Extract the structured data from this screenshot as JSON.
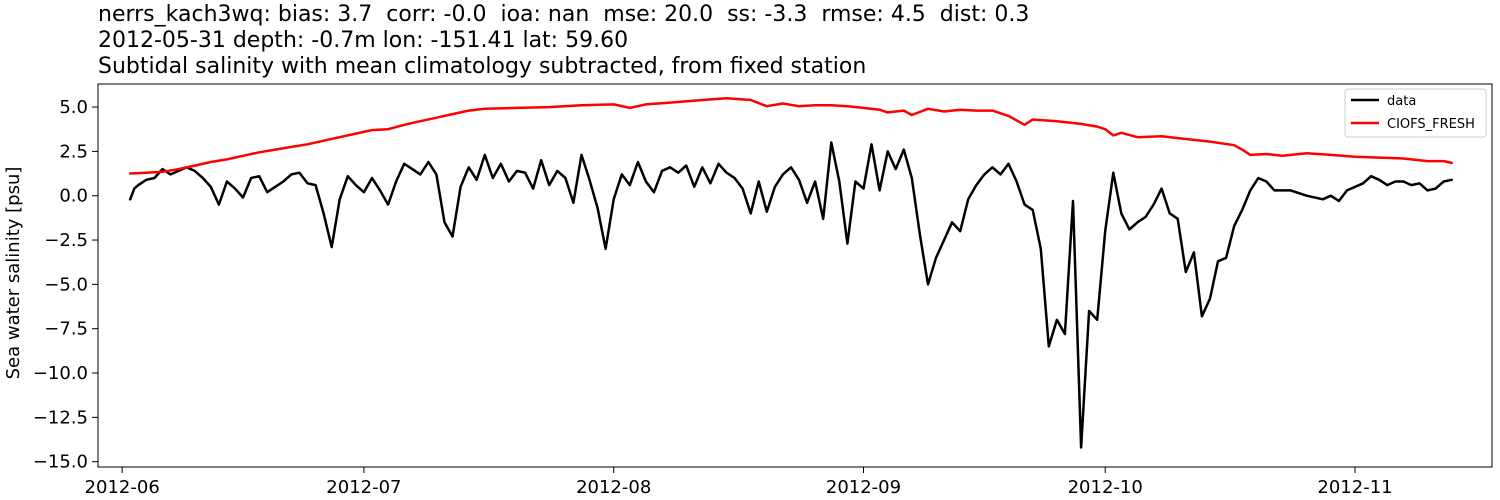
{
  "header": {
    "line1": "nerrs_kach3wq: bias: 3.7  corr: -0.0  ioa: nan  mse: 20.0  ss: -3.3  rmse: 4.5  dist: 0.3",
    "line2": "2012-05-31 depth: -0.7m lon: -151.41 lat: 59.60",
    "line3": "Subtidal salinity with mean climatology subtracted, from fixed station"
  },
  "chart_data": {
    "type": "line",
    "ylabel": "Sea water salinity [psu]",
    "xlabel": "",
    "ylim": [
      -15.3,
      6.3
    ],
    "xlim": [
      "2012-05-29",
      "2012-11-18"
    ],
    "grid": false,
    "legend_position": "top-right",
    "x_tick_labels": [
      "2012-06",
      "2012-07",
      "2012-08",
      "2012-09",
      "2012-10",
      "2012-11"
    ],
    "x_ticks": [
      "2012-06-01",
      "2012-07-01",
      "2012-08-01",
      "2012-09-01",
      "2012-10-01",
      "2012-11-01"
    ],
    "y_ticks": [
      5.0,
      2.5,
      0.0,
      -2.5,
      -5.0,
      -7.5,
      -10.0,
      -12.5,
      -15.0
    ],
    "y_tick_labels": [
      "5.0",
      "2.5",
      "0.0",
      "−2.5",
      "−5.0",
      "−7.5",
      "−10.0",
      "−12.5",
      "−15.0"
    ],
    "series": [
      {
        "name": "data",
        "color": "#000000",
        "points": [
          [
            "2012-06-02",
            -0.2
          ],
          [
            "2012-06-02 12:00",
            0.4
          ],
          [
            "2012-06-03",
            0.6
          ],
          [
            "2012-06-04",
            0.9
          ],
          [
            "2012-06-05",
            1.0
          ],
          [
            "2012-06-06",
            1.5
          ],
          [
            "2012-06-07",
            1.2
          ],
          [
            "2012-06-08",
            1.4
          ],
          [
            "2012-06-09",
            1.6
          ],
          [
            "2012-06-10",
            1.4
          ],
          [
            "2012-06-11",
            1.0
          ],
          [
            "2012-06-12",
            0.5
          ],
          [
            "2012-06-13",
            -0.5
          ],
          [
            "2012-06-14",
            0.8
          ],
          [
            "2012-06-15",
            0.4
          ],
          [
            "2012-06-16",
            -0.1
          ],
          [
            "2012-06-17",
            1.0
          ],
          [
            "2012-06-18",
            1.1
          ],
          [
            "2012-06-19",
            0.2
          ],
          [
            "2012-06-20",
            0.5
          ],
          [
            "2012-06-21",
            0.8
          ],
          [
            "2012-06-22",
            1.2
          ],
          [
            "2012-06-23",
            1.3
          ],
          [
            "2012-06-24",
            0.7
          ],
          [
            "2012-06-25",
            0.6
          ],
          [
            "2012-06-26",
            -1.0
          ],
          [
            "2012-06-27",
            -2.9
          ],
          [
            "2012-06-28",
            -0.2
          ],
          [
            "2012-06-29",
            1.1
          ],
          [
            "2012-06-30",
            0.6
          ],
          [
            "2012-07-01",
            0.2
          ],
          [
            "2012-07-02",
            1.0
          ],
          [
            "2012-07-03",
            0.3
          ],
          [
            "2012-07-04",
            -0.5
          ],
          [
            "2012-07-05",
            0.8
          ],
          [
            "2012-07-06",
            1.8
          ],
          [
            "2012-07-07",
            1.5
          ],
          [
            "2012-07-08",
            1.2
          ],
          [
            "2012-07-09",
            1.9
          ],
          [
            "2012-07-10",
            1.2
          ],
          [
            "2012-07-11",
            -1.5
          ],
          [
            "2012-07-12",
            -2.3
          ],
          [
            "2012-07-13",
            0.5
          ],
          [
            "2012-07-14",
            1.6
          ],
          [
            "2012-07-15",
            0.9
          ],
          [
            "2012-07-16",
            2.3
          ],
          [
            "2012-07-17",
            1.0
          ],
          [
            "2012-07-18",
            1.8
          ],
          [
            "2012-07-19",
            0.8
          ],
          [
            "2012-07-20",
            1.4
          ],
          [
            "2012-07-21",
            1.3
          ],
          [
            "2012-07-22",
            0.4
          ],
          [
            "2012-07-23",
            2.0
          ],
          [
            "2012-07-24",
            0.6
          ],
          [
            "2012-07-25",
            1.4
          ],
          [
            "2012-07-26",
            1.0
          ],
          [
            "2012-07-27",
            -0.4
          ],
          [
            "2012-07-28",
            2.3
          ],
          [
            "2012-07-29",
            0.9
          ],
          [
            "2012-07-30",
            -0.7
          ],
          [
            "2012-07-31",
            -3.0
          ],
          [
            "2012-08-01",
            -0.2
          ],
          [
            "2012-08-02",
            1.2
          ],
          [
            "2012-08-03",
            0.6
          ],
          [
            "2012-08-04",
            1.9
          ],
          [
            "2012-08-05",
            0.8
          ],
          [
            "2012-08-06",
            0.2
          ],
          [
            "2012-08-07",
            1.4
          ],
          [
            "2012-08-08",
            1.6
          ],
          [
            "2012-08-09",
            1.3
          ],
          [
            "2012-08-10",
            1.7
          ],
          [
            "2012-08-11",
            0.5
          ],
          [
            "2012-08-12",
            1.6
          ],
          [
            "2012-08-13",
            0.7
          ],
          [
            "2012-08-14",
            1.8
          ],
          [
            "2012-08-15",
            1.3
          ],
          [
            "2012-08-16",
            1.0
          ],
          [
            "2012-08-17",
            0.4
          ],
          [
            "2012-08-18",
            -1.0
          ],
          [
            "2012-08-19",
            0.8
          ],
          [
            "2012-08-20",
            -0.9
          ],
          [
            "2012-08-21",
            0.5
          ],
          [
            "2012-08-22",
            1.2
          ],
          [
            "2012-08-23",
            1.6
          ],
          [
            "2012-08-24",
            0.9
          ],
          [
            "2012-08-25",
            -0.4
          ],
          [
            "2012-08-26",
            0.8
          ],
          [
            "2012-08-27",
            -1.3
          ],
          [
            "2012-08-28",
            3.0
          ],
          [
            "2012-08-29",
            0.8
          ],
          [
            "2012-08-30",
            -2.7
          ],
          [
            "2012-08-31",
            0.8
          ],
          [
            "2012-09-01",
            0.4
          ],
          [
            "2012-09-02",
            2.9
          ],
          [
            "2012-09-03",
            0.3
          ],
          [
            "2012-09-04",
            2.5
          ],
          [
            "2012-09-05",
            1.5
          ],
          [
            "2012-09-06",
            2.6
          ],
          [
            "2012-09-07",
            1.0
          ],
          [
            "2012-09-08",
            -2.2
          ],
          [
            "2012-09-09",
            -5.0
          ],
          [
            "2012-09-10",
            -3.5
          ],
          [
            "2012-09-11",
            -2.5
          ],
          [
            "2012-09-12",
            -1.5
          ],
          [
            "2012-09-13",
            -2.0
          ],
          [
            "2012-09-14",
            -0.2
          ],
          [
            "2012-09-15",
            0.6
          ],
          [
            "2012-09-16",
            1.2
          ],
          [
            "2012-09-17",
            1.6
          ],
          [
            "2012-09-18",
            1.2
          ],
          [
            "2012-09-19",
            1.8
          ],
          [
            "2012-09-20",
            0.8
          ],
          [
            "2012-09-21",
            -0.5
          ],
          [
            "2012-09-22",
            -0.8
          ],
          [
            "2012-09-23",
            -3.0
          ],
          [
            "2012-09-24",
            -8.5
          ],
          [
            "2012-09-25",
            -7.0
          ],
          [
            "2012-09-26",
            -7.8
          ],
          [
            "2012-09-27",
            -0.3
          ],
          [
            "2012-09-28",
            -14.2
          ],
          [
            "2012-09-29",
            -6.5
          ],
          [
            "2012-09-30",
            -7.0
          ],
          [
            "2012-10-01",
            -2.0
          ],
          [
            "2012-10-02",
            1.3
          ],
          [
            "2012-10-03",
            -1.0
          ],
          [
            "2012-10-04",
            -1.9
          ],
          [
            "2012-10-05",
            -1.5
          ],
          [
            "2012-10-06",
            -1.2
          ],
          [
            "2012-10-07",
            -0.5
          ],
          [
            "2012-10-08",
            0.4
          ],
          [
            "2012-10-09",
            -1.0
          ],
          [
            "2012-10-10",
            -1.3
          ],
          [
            "2012-10-11",
            -4.3
          ],
          [
            "2012-10-12",
            -3.2
          ],
          [
            "2012-10-13",
            -6.8
          ],
          [
            "2012-10-14",
            -5.8
          ],
          [
            "2012-10-15",
            -3.7
          ],
          [
            "2012-10-16",
            -3.5
          ],
          [
            "2012-10-17",
            -1.7
          ],
          [
            "2012-10-18",
            -0.8
          ],
          [
            "2012-10-19",
            0.3
          ],
          [
            "2012-10-20",
            1.0
          ],
          [
            "2012-10-21",
            0.8
          ],
          [
            "2012-10-22",
            0.3
          ],
          [
            "2012-10-24",
            0.3
          ],
          [
            "2012-10-26",
            0.0
          ],
          [
            "2012-10-28",
            -0.2
          ],
          [
            "2012-10-29",
            0.0
          ],
          [
            "2012-10-30",
            -0.3
          ],
          [
            "2012-10-31",
            0.3
          ],
          [
            "2012-11-02",
            0.7
          ],
          [
            "2012-11-03",
            1.1
          ],
          [
            "2012-11-04",
            0.9
          ],
          [
            "2012-11-05",
            0.6
          ],
          [
            "2012-11-06",
            0.8
          ],
          [
            "2012-11-07",
            0.8
          ],
          [
            "2012-11-08",
            0.6
          ],
          [
            "2012-11-09",
            0.7
          ],
          [
            "2012-11-10",
            0.3
          ],
          [
            "2012-11-11",
            0.4
          ],
          [
            "2012-11-12",
            0.8
          ],
          [
            "2012-11-13",
            0.9
          ]
        ]
      },
      {
        "name": "CIOFS_FRESH",
        "color": "#ff0000",
        "points": [
          [
            "2012-06-02",
            1.25
          ],
          [
            "2012-06-04",
            1.3
          ],
          [
            "2012-06-06",
            1.35
          ],
          [
            "2012-06-08",
            1.5
          ],
          [
            "2012-06-10",
            1.7
          ],
          [
            "2012-06-12",
            1.9
          ],
          [
            "2012-06-14",
            2.05
          ],
          [
            "2012-06-16",
            2.25
          ],
          [
            "2012-06-18",
            2.45
          ],
          [
            "2012-06-20",
            2.6
          ],
          [
            "2012-06-22",
            2.75
          ],
          [
            "2012-06-24",
            2.9
          ],
          [
            "2012-06-26",
            3.1
          ],
          [
            "2012-06-28",
            3.3
          ],
          [
            "2012-06-30",
            3.5
          ],
          [
            "2012-07-02",
            3.7
          ],
          [
            "2012-07-04",
            3.75
          ],
          [
            "2012-07-06",
            4.0
          ],
          [
            "2012-07-08",
            4.2
          ],
          [
            "2012-07-10",
            4.4
          ],
          [
            "2012-07-12",
            4.6
          ],
          [
            "2012-07-14",
            4.8
          ],
          [
            "2012-07-16",
            4.9
          ],
          [
            "2012-07-20",
            4.95
          ],
          [
            "2012-07-24",
            5.0
          ],
          [
            "2012-07-28",
            5.1
          ],
          [
            "2012-08-01",
            5.15
          ],
          [
            "2012-08-03",
            4.95
          ],
          [
            "2012-08-05",
            5.15
          ],
          [
            "2012-08-08",
            5.25
          ],
          [
            "2012-08-12",
            5.4
          ],
          [
            "2012-08-15",
            5.5
          ],
          [
            "2012-08-18",
            5.4
          ],
          [
            "2012-08-20",
            5.05
          ],
          [
            "2012-08-22",
            5.2
          ],
          [
            "2012-08-24",
            5.05
          ],
          [
            "2012-08-26",
            5.1
          ],
          [
            "2012-08-28",
            5.1
          ],
          [
            "2012-08-30",
            5.05
          ],
          [
            "2012-09-01",
            4.95
          ],
          [
            "2012-09-03",
            4.85
          ],
          [
            "2012-09-04",
            4.7
          ],
          [
            "2012-09-06",
            4.8
          ],
          [
            "2012-09-07",
            4.55
          ],
          [
            "2012-09-09",
            4.9
          ],
          [
            "2012-09-11",
            4.75
          ],
          [
            "2012-09-13",
            4.85
          ],
          [
            "2012-09-15",
            4.8
          ],
          [
            "2012-09-17",
            4.8
          ],
          [
            "2012-09-19",
            4.5
          ],
          [
            "2012-09-21",
            4.0
          ],
          [
            "2012-09-22",
            4.3
          ],
          [
            "2012-09-25",
            4.2
          ],
          [
            "2012-09-28",
            4.05
          ],
          [
            "2012-09-30",
            3.9
          ],
          [
            "2012-10-01",
            3.75
          ],
          [
            "2012-10-02",
            3.4
          ],
          [
            "2012-10-03",
            3.55
          ],
          [
            "2012-10-05",
            3.3
          ],
          [
            "2012-10-08",
            3.35
          ],
          [
            "2012-10-11",
            3.2
          ],
          [
            "2012-10-14",
            3.05
          ],
          [
            "2012-10-17",
            2.85
          ],
          [
            "2012-10-18",
            2.6
          ],
          [
            "2012-10-19",
            2.3
          ],
          [
            "2012-10-21",
            2.35
          ],
          [
            "2012-10-23",
            2.25
          ],
          [
            "2012-10-26",
            2.4
          ],
          [
            "2012-10-29",
            2.3
          ],
          [
            "2012-11-01",
            2.2
          ],
          [
            "2012-11-04",
            2.15
          ],
          [
            "2012-11-07",
            2.1
          ],
          [
            "2012-11-10",
            1.95
          ],
          [
            "2012-11-12",
            1.95
          ],
          [
            "2012-11-13",
            1.85
          ]
        ]
      }
    ]
  }
}
